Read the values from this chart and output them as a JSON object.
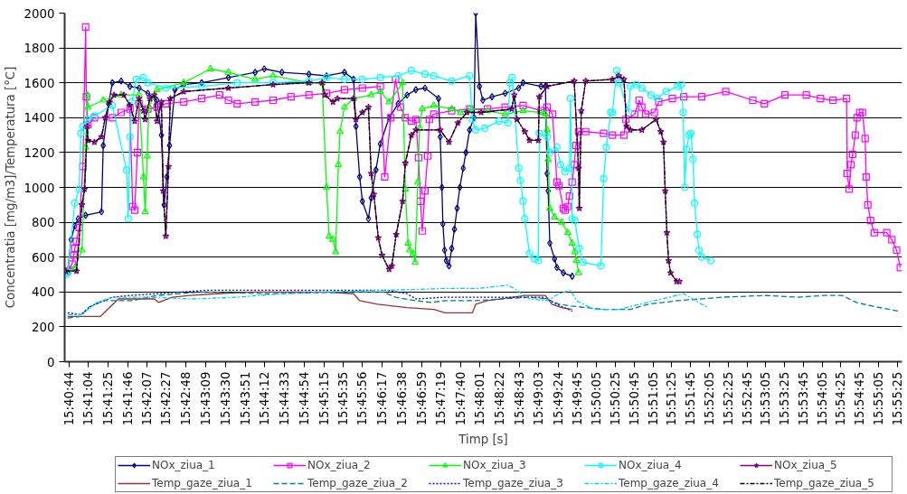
{
  "chart_data": {
    "type": "line",
    "xlabel": "Timp [s]",
    "ylabel": "Concentratia [mg/m3]/Temperatura [°C]",
    "xlim": [
      15.6775,
      15.925
    ],
    "ylim": [
      0,
      2000
    ],
    "yticks": [
      0,
      200,
      400,
      600,
      800,
      1000,
      1200,
      1400,
      1600,
      1800,
      2000
    ],
    "xticks": [
      {
        "value": 15.67889,
        "label": "15:40:44"
      },
      {
        "value": 15.68444,
        "label": "15:41:04"
      },
      {
        "value": 15.69028,
        "label": "15:41:25"
      },
      {
        "value": 15.69611,
        "label": "15:41:46"
      },
      {
        "value": 15.70194,
        "label": "15:42:07"
      },
      {
        "value": 15.7075,
        "label": "15:42:27"
      },
      {
        "value": 15.71333,
        "label": "15:42:48"
      },
      {
        "value": 15.71917,
        "label": "15:43:09"
      },
      {
        "value": 15.725,
        "label": "15:43:30"
      },
      {
        "value": 15.73083,
        "label": "15:43:51"
      },
      {
        "value": 15.73667,
        "label": "15:44:12"
      },
      {
        "value": 15.7425,
        "label": "15:44:33"
      },
      {
        "value": 15.74833,
        "label": "15:44:54"
      },
      {
        "value": 15.75417,
        "label": "15:45:15"
      },
      {
        "value": 15.75972,
        "label": "15:45:35"
      },
      {
        "value": 15.76556,
        "label": "15:45:56"
      },
      {
        "value": 15.77139,
        "label": "15:46:17"
      },
      {
        "value": 15.77722,
        "label": "15:46:38"
      },
      {
        "value": 15.78306,
        "label": "15:46:59"
      },
      {
        "value": 15.78861,
        "label": "15:47:19"
      },
      {
        "value": 15.79444,
        "label": "15:47:40"
      },
      {
        "value": 15.80028,
        "label": "15:48:01"
      },
      {
        "value": 15.80611,
        "label": "15:48:22"
      },
      {
        "value": 15.81194,
        "label": "15:48:43"
      },
      {
        "value": 15.8175,
        "label": "15:49:03"
      },
      {
        "value": 15.82333,
        "label": "15:49:24"
      },
      {
        "value": 15.82917,
        "label": "15:49:45"
      },
      {
        "value": 15.83472,
        "label": "15:50:05"
      },
      {
        "value": 15.84028,
        "label": "15:50:25"
      },
      {
        "value": 15.84583,
        "label": "15:50:45"
      },
      {
        "value": 15.85139,
        "label": "15:51:05"
      },
      {
        "value": 15.85694,
        "label": "15:51:25"
      },
      {
        "value": 15.8625,
        "label": "15:51:45"
      },
      {
        "value": 15.86806,
        "label": "15:52:05"
      },
      {
        "value": 15.87361,
        "label": "15:52:25"
      },
      {
        "value": 15.87917,
        "label": "15:52:45"
      },
      {
        "value": 15.88472,
        "label": "15:53:05"
      },
      {
        "value": 15.89028,
        "label": "15:53:25"
      },
      {
        "value": 15.89583,
        "label": "15:53:45"
      },
      {
        "value": 15.90139,
        "label": "15:54:05"
      },
      {
        "value": 15.90694,
        "label": "15:54:25"
      },
      {
        "value": 15.9125,
        "label": "15:54:45"
      },
      {
        "value": 15.91806,
        "label": "15:55:05"
      },
      {
        "value": 15.92361,
        "label": "15:55:25"
      }
    ],
    "grid": "y",
    "legend": "bottom",
    "series": [
      {
        "name": "NOx_ziua_1",
        "color": "#000080",
        "marker": "diamond",
        "line_style": "solid",
        "x": [
          15.6784,
          15.6794,
          15.6805,
          15.6815,
          15.6837,
          15.6884,
          15.6889,
          15.6905,
          15.6916,
          15.6942,
          15.6968,
          15.6995,
          15.7021,
          15.7048,
          15.7061,
          15.7069,
          15.7077,
          15.7085,
          15.7101,
          15.7127,
          15.718,
          15.7259,
          15.7338,
          15.7365,
          15.7417,
          15.7497,
          15.7549,
          15.7602,
          15.7629,
          15.7636,
          15.7647,
          15.7655,
          15.7673,
          15.7681,
          15.7695,
          15.7708,
          15.7734,
          15.7761,
          15.7787,
          15.7813,
          15.784,
          15.788,
          15.7885,
          15.789,
          15.7893,
          15.7898,
          15.7903,
          15.7911,
          15.7919,
          15.7927,
          15.7935,
          15.7943,
          15.7953,
          15.7961,
          15.7972,
          15.7985,
          15.799,
          15.8001,
          15.8011,
          15.8038,
          15.8077,
          15.8117,
          15.813,
          15.8183,
          15.8196,
          15.8201,
          15.8204,
          15.8209,
          15.8223,
          15.823,
          15.8249,
          15.8275
        ],
        "values": [
          520,
          700,
          780,
          820,
          840,
          860,
          1240,
          1480,
          1600,
          1610,
          1580,
          1570,
          1540,
          1500,
          1300,
          900,
          1060,
          1240,
          1560,
          1590,
          1600,
          1630,
          1660,
          1680,
          1660,
          1650,
          1640,
          1660,
          1620,
          1350,
          1060,
          920,
          820,
          940,
          1100,
          1250,
          1400,
          1480,
          1530,
          1560,
          1570,
          1510,
          1290,
          1000,
          790,
          640,
          580,
          550,
          650,
          760,
          880,
          1000,
          1110,
          1200,
          1330,
          1400,
          2000,
          1580,
          1500,
          1520,
          1540,
          1570,
          1600,
          1580,
          1580,
          1080,
          980,
          680,
          590,
          540,
          510,
          490
        ]
      },
      {
        "name": "NOx_ziua_2",
        "color": "#ff00ff",
        "marker": "square",
        "line_style": "solid",
        "x": [
          15.6784,
          15.6797,
          15.6802,
          15.6805,
          15.681,
          15.6818,
          15.6829,
          15.6837,
          15.6839,
          15.6844,
          15.6863,
          15.6916,
          15.6942,
          15.6968,
          15.6976,
          15.6982,
          15.699,
          15.6995,
          15.7021,
          15.7048,
          15.7074,
          15.7127,
          15.718,
          15.7233,
          15.7259,
          15.7285,
          15.7338,
          15.7391,
          15.7444,
          15.7497,
          15.7549,
          15.7602,
          15.7655,
          15.7708,
          15.7721,
          15.7739,
          15.7753,
          15.7768,
          15.7782,
          15.78,
          15.7813,
          15.7821,
          15.7827,
          15.7832,
          15.784,
          15.7848,
          15.7853,
          15.7866,
          15.7919,
          15.7972,
          15.8025,
          15.8077,
          15.813,
          15.8183,
          15.8201,
          15.8217,
          15.823,
          15.8236,
          15.8249,
          15.8254,
          15.8262,
          15.8267,
          15.8275,
          15.8281,
          15.8286,
          15.8294,
          15.8315,
          15.8368,
          15.8394,
          15.8428,
          15.8434,
          15.846,
          15.8473,
          15.8481,
          15.8492,
          15.8518,
          15.8531,
          15.8571,
          15.8605,
          15.8658,
          15.8729,
          15.8809,
          15.8843,
          15.8904,
          15.8967,
          15.9009,
          15.9046,
          15.9086,
          15.9088,
          15.9094,
          15.9099,
          15.9104,
          15.9112,
          15.9117,
          15.9125,
          15.9133,
          15.9141,
          15.9144,
          15.9149,
          15.9157,
          15.9168,
          15.9205,
          15.922,
          15.9234,
          15.9245
        ],
        "values": [
          520,
          560,
          610,
          650,
          690,
          770,
          1120,
          1920,
          1520,
          1360,
          1400,
          1400,
          1430,
          1450,
          890,
          870,
          1200,
          1480,
          1450,
          1460,
          1480,
          1490,
          1510,
          1530,
          1500,
          1480,
          1490,
          1500,
          1520,
          1530,
          1540,
          1560,
          1570,
          1580,
          1060,
          1400,
          1620,
          1460,
          1400,
          1380,
          1390,
          1170,
          920,
          750,
          980,
          1180,
          1390,
          1420,
          1440,
          1450,
          1450,
          1460,
          1470,
          1440,
          1460,
          1420,
          1030,
          1010,
          880,
          870,
          890,
          950,
          1030,
          1130,
          1240,
          1320,
          1320,
          1310,
          1300,
          1300,
          1390,
          1420,
          1500,
          1460,
          1420,
          1430,
          1490,
          1510,
          1520,
          1520,
          1550,
          1500,
          1480,
          1530,
          1530,
          1510,
          1500,
          1510,
          1080,
          990,
          1130,
          1190,
          1300,
          1400,
          1430,
          1430,
          1280,
          1060,
          900,
          810,
          740,
          740,
          700,
          640,
          540
        ]
      },
      {
        "name": "NOx_ziua_3",
        "color": "#00ff00",
        "marker": "triangle",
        "line_style": "solid",
        "x": [
          15.6784,
          15.6805,
          15.6826,
          15.6837,
          15.6842,
          15.6844,
          15.6889,
          15.6942,
          15.6995,
          15.7008,
          15.7013,
          15.7019,
          15.7024,
          15.7048,
          15.7127,
          15.7206,
          15.7259,
          15.7338,
          15.7391,
          15.7497,
          15.7536,
          15.7549,
          15.7557,
          15.7568,
          15.7576,
          15.7584,
          15.7589,
          15.7602,
          15.7629,
          15.7681,
          15.7708,
          15.7734,
          15.7774,
          15.7782,
          15.779,
          15.7795,
          15.7805,
          15.7811,
          15.7819,
          15.7824,
          15.7832,
          15.7866,
          15.7919,
          15.7945,
          15.7972,
          15.8025,
          15.8077,
          15.813,
          15.8183,
          15.8196,
          15.8201,
          15.8204,
          15.8209,
          15.8223,
          15.8244,
          15.8262,
          15.8275,
          15.8283,
          15.8288,
          15.8294
        ],
        "values": [
          520,
          540,
          640,
          1230,
          1530,
          1460,
          1500,
          1530,
          1530,
          1060,
          860,
          1180,
          1460,
          1560,
          1600,
          1680,
          1660,
          1620,
          1640,
          1600,
          1600,
          1000,
          720,
          700,
          630,
          1130,
          1320,
          1460,
          1510,
          1530,
          1550,
          1490,
          1600,
          990,
          680,
          640,
          620,
          570,
          1030,
          1340,
          1450,
          1470,
          1450,
          1430,
          1450,
          1440,
          1420,
          1440,
          1430,
          1420,
          1330,
          1160,
          880,
          830,
          800,
          740,
          680,
          630,
          580,
          510
        ]
      },
      {
        "name": "NOx_ziua_4",
        "color": "#00ffff",
        "marker": "circle",
        "line_style": "solid",
        "x": [
          15.6778,
          15.6784,
          15.6805,
          15.6818,
          15.6823,
          15.6829,
          15.6842,
          15.6863,
          15.6916,
          15.6958,
          15.6963,
          15.6968,
          15.6974,
          15.6987,
          15.7008,
          15.7021,
          15.7074,
          15.718,
          15.7285,
          15.7391,
          15.7497,
          15.7549,
          15.7602,
          15.7655,
          15.7708,
          15.7761,
          15.78,
          15.784,
          15.7866,
          15.7919,
          15.7972,
          15.798,
          15.799,
          15.8017,
          15.8059,
          15.8085,
          15.8091,
          15.8098,
          15.8117,
          15.8122,
          15.813,
          15.8135,
          15.8149,
          15.8164,
          15.8175,
          15.8178,
          15.8201,
          15.8209,
          15.823,
          15.8241,
          15.8254,
          15.8267,
          15.827,
          15.8275,
          15.8283,
          15.8296,
          15.8307,
          15.836,
          15.8368,
          15.8376,
          15.8389,
          15.8394,
          15.8407,
          15.8415,
          15.8442,
          15.8447,
          15.8465,
          15.8481,
          15.8508,
          15.8526,
          15.8553,
          15.8587,
          15.8597,
          15.8603,
          15.8608,
          15.8613,
          15.8621,
          15.8626,
          15.8632,
          15.8637,
          15.8645,
          15.865,
          15.8658,
          15.8685
        ],
        "values": [
          500,
          510,
          910,
          990,
          1310,
          1350,
          1390,
          1410,
          1470,
          1100,
          820,
          1290,
          1490,
          1620,
          1630,
          1600,
          1570,
          1580,
          1600,
          1600,
          1610,
          1630,
          1620,
          1620,
          1630,
          1640,
          1670,
          1650,
          1640,
          1610,
          1640,
          1390,
          1330,
          1340,
          1380,
          1370,
          1600,
          1630,
          1110,
          1040,
          920,
          820,
          620,
          590,
          580,
          1310,
          1290,
          1200,
          1230,
          1130,
          1090,
          1110,
          1510,
          820,
          810,
          650,
          570,
          550,
          1050,
          1230,
          1430,
          1430,
          1670,
          1600,
          1430,
          1580,
          1590,
          1570,
          1530,
          1510,
          1550,
          1580,
          1590,
          1430,
          1000,
          1220,
          1300,
          1310,
          1160,
          910,
          730,
          640,
          600,
          580
        ]
      },
      {
        "name": "NOx_ziua_5",
        "color": "#800080",
        "marker": "star",
        "line_style": "solid",
        "x": [
          15.6778,
          15.681,
          15.6826,
          15.6834,
          15.6842,
          15.6844,
          15.6863,
          15.6884,
          15.6895,
          15.6908,
          15.6921,
          15.695,
          15.6968,
          15.6982,
          15.6995,
          15.7008,
          15.7013,
          15.7027,
          15.704,
          15.7048,
          15.7061,
          15.7066,
          15.7074,
          15.7082,
          15.7087,
          15.7127,
          15.7259,
          15.7391,
          15.7497,
          15.7536,
          15.7544,
          15.7568,
          15.7581,
          15.7629,
          15.7636,
          15.7655,
          15.7673,
          15.7681,
          15.7689,
          15.7702,
          15.7713,
          15.7734,
          15.7742,
          15.7755,
          15.7774,
          15.7782,
          15.78,
          15.7813,
          15.7885,
          15.7911,
          15.7937,
          15.7964,
          15.8006,
          15.8096,
          15.8104,
          15.8112,
          15.8135,
          15.8149,
          15.8175,
          15.8178,
          15.8201,
          15.8281,
          15.8294,
          15.8296,
          15.8302,
          15.8315,
          15.8394,
          15.8413,
          15.8428,
          15.8436,
          15.8447,
          15.8481,
          15.8523,
          15.8537,
          15.8545,
          15.855,
          15.8555,
          15.856,
          15.8566,
          15.8584,
          15.8592
        ],
        "values": [
          520,
          520,
          900,
          990,
          1350,
          1270,
          1260,
          1290,
          1400,
          1490,
          1530,
          1530,
          1470,
          1380,
          1510,
          1440,
          1390,
          1510,
          1530,
          1380,
          1490,
          980,
          720,
          1120,
          1510,
          1550,
          1570,
          1590,
          1600,
          1600,
          1530,
          1490,
          1510,
          1510,
          1390,
          1430,
          1460,
          1080,
          960,
          710,
          610,
          530,
          550,
          730,
          920,
          1140,
          1300,
          1330,
          1330,
          1260,
          1370,
          1430,
          1430,
          1450,
          1530,
          1390,
          1320,
          1270,
          1270,
          1520,
          1580,
          1610,
          1110,
          880,
          1440,
          1610,
          1620,
          1640,
          1620,
          1350,
          1330,
          1330,
          1390,
          1320,
          1260,
          980,
          740,
          580,
          510,
          460,
          460
        ]
      },
      {
        "name": "Temp_gaze_ziua_1",
        "color": "#993333",
        "marker": "none",
        "line_style": "solid",
        "x": [
          15.6784,
          15.6881,
          15.6934,
          15.704,
          15.7053,
          15.7093,
          15.7145,
          15.7225,
          15.733,
          15.7549,
          15.7629,
          15.7647,
          15.77,
          15.7787,
          15.7866,
          15.79,
          15.798,
          15.799,
          15.8025,
          15.8138,
          15.8196,
          15.8215,
          15.8244,
          15.8275
        ],
        "values": [
          260,
          260,
          360,
          360,
          340,
          370,
          380,
          390,
          400,
          400,
          390,
          350,
          330,
          310,
          300,
          280,
          280,
          330,
          350,
          380,
          380,
          330,
          310,
          300
        ]
      },
      {
        "name": "Temp_gaze_ziua_2",
        "color": "#008080",
        "marker": "none",
        "line_style": "dashed",
        "x": [
          15.6784,
          15.6823,
          15.6844,
          15.6889,
          15.6976,
          15.7021,
          15.7048,
          15.718,
          15.7372,
          15.7636,
          15.7716,
          15.7753,
          15.7813,
          15.7858,
          15.79,
          15.799,
          15.8149,
          15.8201,
          15.8236,
          15.827,
          15.8368,
          15.8447,
          15.85,
          15.8587,
          15.8719,
          15.8851,
          15.8941,
          15.902,
          15.9073,
          15.9115,
          15.916,
          15.9239
        ],
        "values": [
          250,
          260,
          310,
          350,
          350,
          370,
          380,
          400,
          390,
          400,
          400,
          370,
          350,
          340,
          350,
          350,
          370,
          360,
          330,
          320,
          300,
          300,
          330,
          350,
          370,
          380,
          370,
          380,
          380,
          340,
          320,
          290
        ]
      },
      {
        "name": "Temp_gaze_ziua_3",
        "color": "#0000ff",
        "marker": "none",
        "line_style": "dotted",
        "x": [
          15.6784,
          15.6823,
          15.6855,
          15.6916,
          15.6968,
          15.7048,
          15.7198,
          15.7549,
          15.7726,
          15.7787,
          15.7813,
          15.79,
          15.799,
          15.8191,
          15.8228,
          15.8275
        ],
        "values": [
          280,
          270,
          320,
          370,
          380,
          390,
          410,
          410,
          410,
          390,
          360,
          370,
          370,
          370,
          330,
          290
        ]
      },
      {
        "name": "Temp_gaze_ziua_4",
        "color": "#00ccff",
        "marker": "none",
        "line_style": "dashdot",
        "x": [
          15.6784,
          15.6823,
          15.6844,
          15.6871,
          15.6916,
          15.7021,
          15.7153,
          15.7285,
          15.7417,
          15.7549,
          15.7726,
          15.79,
          15.7998,
          15.8085,
          15.8104,
          15.8149,
          15.8201,
          15.8236,
          15.827,
          15.8288,
          15.8341,
          15.8413,
          15.8518,
          15.8605,
          15.864,
          15.8677
        ],
        "values": [
          270,
          270,
          300,
          340,
          370,
          370,
          360,
          370,
          390,
          400,
          410,
          420,
          420,
          440,
          420,
          360,
          350,
          390,
          410,
          350,
          300,
          300,
          350,
          390,
          350,
          310
        ]
      },
      {
        "name": "Temp_gaze_ziua_5",
        "color": "#000000",
        "marker": "none",
        "line_style": "dashdot",
        "x": [
          15.6778,
          15.681,
          15.6826,
          15.6834,
          15.6842,
          15.6844,
          15.6863,
          15.6884,
          15.6895,
          15.6908,
          15.6921,
          15.695,
          15.6968,
          15.6982,
          15.6995,
          15.7008,
          15.7013,
          15.7027,
          15.704,
          15.7048,
          15.7061,
          15.7066,
          15.7074,
          15.7082,
          15.7087,
          15.7127,
          15.7259,
          15.7391,
          15.7497,
          15.7536,
          15.7544,
          15.7568,
          15.7581,
          15.7629,
          15.7636,
          15.7655,
          15.7673,
          15.7681,
          15.7689,
          15.7702,
          15.7713,
          15.7734,
          15.7742,
          15.7755,
          15.7774,
          15.7782,
          15.78,
          15.7813,
          15.7885,
          15.7911,
          15.7937,
          15.7964,
          15.8006,
          15.8096,
          15.8104,
          15.8112,
          15.8135,
          15.8149,
          15.8175,
          15.8178,
          15.8201,
          15.8281,
          15.8294,
          15.8296,
          15.8302,
          15.8315,
          15.8394,
          15.8413,
          15.8428,
          15.8436,
          15.8447,
          15.8481,
          15.8523,
          15.8537,
          15.8545,
          15.855,
          15.8555,
          15.856,
          15.8566,
          15.8584,
          15.8592
        ],
        "values": [
          520,
          520,
          900,
          990,
          1350,
          1270,
          1260,
          1290,
          1400,
          1490,
          1530,
          1530,
          1470,
          1380,
          1510,
          1440,
          1390,
          1510,
          1530,
          1380,
          1490,
          980,
          720,
          1120,
          1510,
          1550,
          1570,
          1590,
          1600,
          1600,
          1530,
          1490,
          1510,
          1510,
          1390,
          1430,
          1460,
          1080,
          960,
          710,
          610,
          530,
          550,
          730,
          920,
          1140,
          1300,
          1330,
          1330,
          1260,
          1370,
          1430,
          1430,
          1450,
          1530,
          1390,
          1320,
          1270,
          1270,
          1520,
          1580,
          1610,
          1110,
          880,
          1440,
          1610,
          1620,
          1640,
          1620,
          1350,
          1330,
          1330,
          1390,
          1320,
          1260,
          980,
          740,
          580,
          510,
          460,
          460
        ]
      }
    ]
  }
}
